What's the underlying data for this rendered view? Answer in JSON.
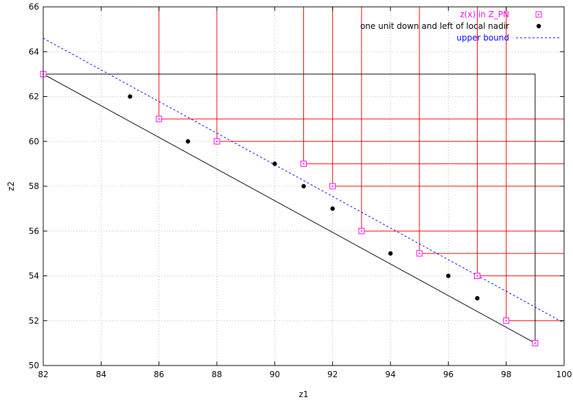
{
  "chart_data": {
    "type": "scatter",
    "xlabel": "z1",
    "ylabel": "z2",
    "xlim": [
      82,
      100
    ],
    "ylim": [
      50,
      66
    ],
    "x_ticks": [
      82,
      84,
      86,
      88,
      90,
      92,
      94,
      96,
      98,
      100
    ],
    "y_ticks": [
      50,
      52,
      54,
      56,
      58,
      60,
      62,
      64,
      66
    ],
    "grid": true,
    "legend_position": "top-right",
    "series": [
      {
        "name": "z(x) in Z_PN",
        "marker": "open-square",
        "color": "#ff00ff",
        "points": [
          [
            82,
            63
          ],
          [
            86,
            61
          ],
          [
            88,
            60
          ],
          [
            91,
            59
          ],
          [
            92,
            58
          ],
          [
            93,
            56
          ],
          [
            95,
            55
          ],
          [
            97,
            54
          ],
          [
            98,
            52
          ],
          [
            99,
            51
          ]
        ]
      },
      {
        "name": "one unit down and left of local nadir",
        "marker": "filled-circle",
        "color": "#000000",
        "points": [
          [
            85,
            62
          ],
          [
            87,
            60
          ],
          [
            90,
            59
          ],
          [
            91,
            58
          ],
          [
            92,
            57
          ],
          [
            94,
            55
          ],
          [
            96,
            54
          ],
          [
            97,
            53
          ]
        ]
      },
      {
        "name": "upper bound",
        "style": "dashed-line",
        "color": "#0000ff",
        "points": [
          [
            82,
            64.6
          ],
          [
            100,
            51.9
          ]
        ]
      }
    ],
    "red_cone_color": "#ff0000",
    "black_polygon": {
      "color": "#000000",
      "points": [
        [
          82,
          63
        ],
        [
          99,
          63
        ],
        [
          99,
          51
        ],
        [
          82,
          63
        ]
      ]
    }
  }
}
